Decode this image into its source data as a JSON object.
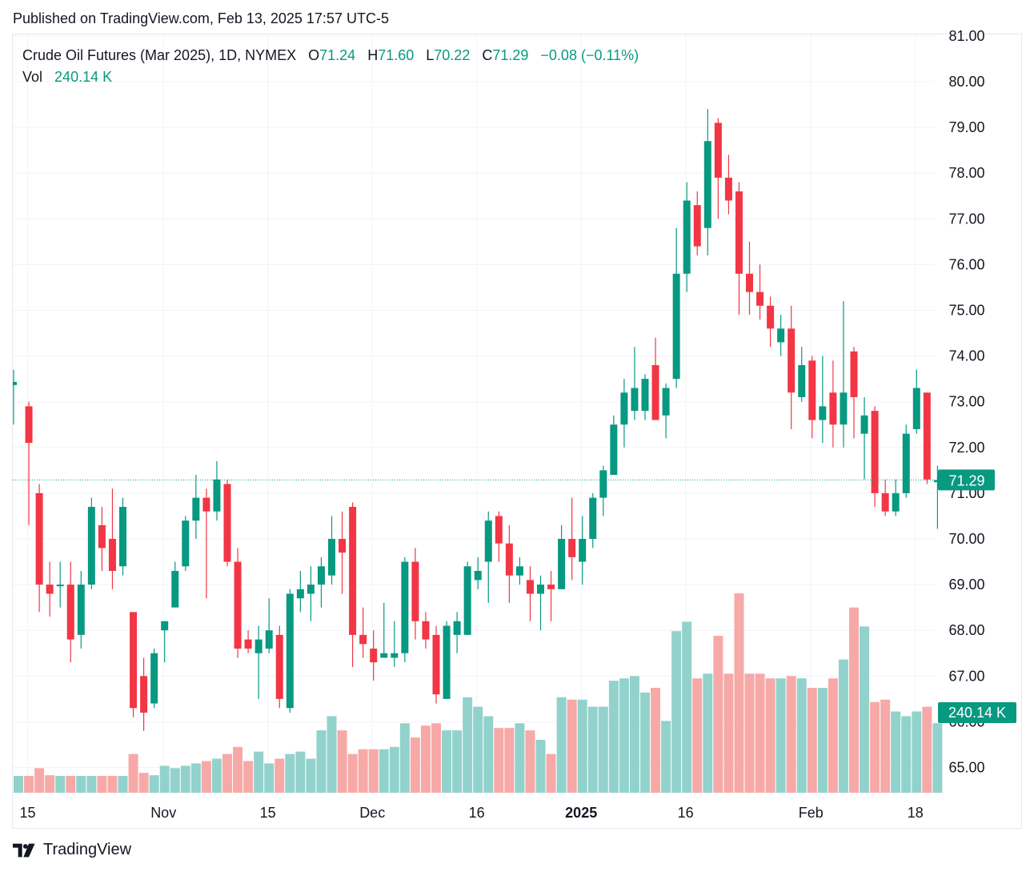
{
  "published": "Published on TradingView.com, Feb 13, 2025 17:57 UTC-5",
  "legend": {
    "symbol": "Crude Oil Futures (Mar 2025), 1D, NYMEX",
    "o_label": "O",
    "o_value": "71.24",
    "h_label": "H",
    "h_value": "71.60",
    "l_label": "L",
    "l_value": "70.22",
    "c_label": "C",
    "c_value": "71.29",
    "change": "−0.08 (−0.11%)",
    "vol_label": "Vol",
    "vol_value": "240.14 K"
  },
  "brand": "TradingView",
  "colors": {
    "up": "#089981",
    "down": "#f23645",
    "up_volume": "#92d2cc",
    "down_volume": "#f7a9a7",
    "grid": "#f0f3fa"
  },
  "chart_data": {
    "type": "candlestick",
    "title": "Crude Oil Futures (Mar 2025), 1D, NYMEX",
    "ylim": [
      64.5,
      81.0
    ],
    "y_ticks": [
      "81.00",
      "80.00",
      "79.00",
      "78.00",
      "77.00",
      "76.00",
      "75.00",
      "74.00",
      "73.00",
      "72.00",
      "71.00",
      "70.00",
      "69.00",
      "68.00",
      "67.00",
      "66.00",
      "65.00"
    ],
    "x_ticks": [
      {
        "label": "15",
        "index": 1
      },
      {
        "label": "Nov",
        "index": 14
      },
      {
        "label": "15",
        "index": 24
      },
      {
        "label": "Dec",
        "index": 34
      },
      {
        "label": "16",
        "index": 44
      },
      {
        "label": "2025",
        "index": 54,
        "bold": true
      },
      {
        "label": "16",
        "index": 64
      },
      {
        "label": "Feb",
        "index": 76
      },
      {
        "label": "18",
        "index": 86
      }
    ],
    "last_price": "71.29",
    "last_volume": "240.14 K",
    "candles": [
      {
        "o": 73.4,
        "h": 73.7,
        "l": 72.5,
        "c": 73.4,
        "v": 0.0
      },
      {
        "o": 72.9,
        "h": 73.0,
        "l": 70.3,
        "c": 72.1,
        "v": 0.1
      },
      {
        "o": 71.0,
        "h": 71.2,
        "l": 68.4,
        "c": 69.0,
        "v": 0.3
      },
      {
        "o": 69.0,
        "h": 69.5,
        "l": 68.3,
        "c": 68.8,
        "v": 0.15
      },
      {
        "o": 69.0,
        "h": 69.5,
        "l": 68.5,
        "c": 69.0,
        "v": 0.1
      },
      {
        "o": 69.0,
        "h": 69.5,
        "l": 67.3,
        "c": 67.8,
        "v": 0.1
      },
      {
        "o": 67.9,
        "h": 69.3,
        "l": 67.6,
        "c": 69.0,
        "v": 0.05
      },
      {
        "o": 69.0,
        "h": 70.9,
        "l": 68.9,
        "c": 70.7,
        "v": 0.1
      },
      {
        "o": 70.3,
        "h": 70.7,
        "l": 69.3,
        "c": 69.8,
        "v": 0.1
      },
      {
        "o": 70.0,
        "h": 71.1,
        "l": 68.9,
        "c": 69.3,
        "v": 0.05
      },
      {
        "o": 69.4,
        "h": 70.9,
        "l": 69.2,
        "c": 70.7,
        "v": 0.1
      },
      {
        "o": 68.4,
        "h": 68.4,
        "l": 66.1,
        "c": 66.3,
        "v": 0.6
      },
      {
        "o": 67.0,
        "h": 67.4,
        "l": 65.8,
        "c": 66.2,
        "v": 0.2
      },
      {
        "o": 66.4,
        "h": 67.6,
        "l": 66.3,
        "c": 67.5,
        "v": 0.15
      },
      {
        "o": 68.0,
        "h": 68.2,
        "l": 67.3,
        "c": 68.2,
        "v": 0.35
      },
      {
        "o": 68.5,
        "h": 69.5,
        "l": 68.5,
        "c": 69.3,
        "v": 0.3
      },
      {
        "o": 69.4,
        "h": 70.5,
        "l": 69.3,
        "c": 70.4,
        "v": 0.35
      },
      {
        "o": 70.4,
        "h": 71.4,
        "l": 70.0,
        "c": 70.9,
        "v": 0.4
      },
      {
        "o": 70.9,
        "h": 71.1,
        "l": 68.7,
        "c": 70.6,
        "v": 0.45
      },
      {
        "o": 70.6,
        "h": 71.7,
        "l": 70.4,
        "c": 71.3,
        "v": 0.5
      },
      {
        "o": 71.2,
        "h": 71.3,
        "l": 69.4,
        "c": 69.5,
        "v": 0.6
      },
      {
        "o": 69.5,
        "h": 69.8,
        "l": 67.4,
        "c": 67.6,
        "v": 0.75
      },
      {
        "o": 67.8,
        "h": 68.0,
        "l": 67.5,
        "c": 67.6,
        "v": 0.45
      },
      {
        "o": 67.5,
        "h": 68.1,
        "l": 66.5,
        "c": 67.8,
        "v": 0.65
      },
      {
        "o": 67.6,
        "h": 68.7,
        "l": 67.5,
        "c": 68.0,
        "v": 0.4
      },
      {
        "o": 67.9,
        "h": 68.1,
        "l": 66.3,
        "c": 66.5,
        "v": 0.5
      },
      {
        "o": 66.3,
        "h": 68.9,
        "l": 66.2,
        "c": 68.8,
        "v": 0.6
      },
      {
        "o": 68.7,
        "h": 69.3,
        "l": 68.4,
        "c": 68.9,
        "v": 0.65
      },
      {
        "o": 68.8,
        "h": 69.4,
        "l": 68.2,
        "c": 69.0,
        "v": 0.5
      },
      {
        "o": 69.0,
        "h": 69.6,
        "l": 68.5,
        "c": 69.4,
        "v": 1.1
      },
      {
        "o": 69.2,
        "h": 70.5,
        "l": 69.0,
        "c": 70.0,
        "v": 1.4
      },
      {
        "o": 70.0,
        "h": 70.6,
        "l": 68.8,
        "c": 69.7,
        "v": 1.1
      },
      {
        "o": 70.7,
        "h": 70.8,
        "l": 67.2,
        "c": 67.9,
        "v": 0.6
      },
      {
        "o": 67.9,
        "h": 68.5,
        "l": 67.4,
        "c": 67.7,
        "v": 0.7
      },
      {
        "o": 67.6,
        "h": 68.0,
        "l": 66.9,
        "c": 67.3,
        "v": 0.7
      },
      {
        "o": 67.4,
        "h": 68.6,
        "l": 67.4,
        "c": 67.5,
        "v": 0.7
      },
      {
        "o": 67.4,
        "h": 68.2,
        "l": 67.2,
        "c": 67.5,
        "v": 0.75
      },
      {
        "o": 67.5,
        "h": 69.6,
        "l": 67.3,
        "c": 69.5,
        "v": 1.25
      },
      {
        "o": 69.5,
        "h": 69.8,
        "l": 67.8,
        "c": 68.2,
        "v": 0.95
      },
      {
        "o": 68.2,
        "h": 68.4,
        "l": 67.6,
        "c": 67.8,
        "v": 1.2
      },
      {
        "o": 67.9,
        "h": 68.1,
        "l": 66.4,
        "c": 66.6,
        "v": 1.25
      },
      {
        "o": 66.5,
        "h": 68.2,
        "l": 66.6,
        "c": 68.1,
        "v": 1.1
      },
      {
        "o": 67.9,
        "h": 68.4,
        "l": 67.5,
        "c": 68.2,
        "v": 1.1
      },
      {
        "o": 67.9,
        "h": 69.5,
        "l": 67.9,
        "c": 69.4,
        "v": 1.8
      },
      {
        "o": 69.1,
        "h": 69.6,
        "l": 68.9,
        "c": 69.3,
        "v": 1.6
      },
      {
        "o": 69.5,
        "h": 70.6,
        "l": 68.6,
        "c": 70.4,
        "v": 1.4
      },
      {
        "o": 70.5,
        "h": 70.6,
        "l": 69.5,
        "c": 69.9,
        "v": 1.15
      },
      {
        "o": 69.9,
        "h": 70.3,
        "l": 68.6,
        "c": 69.2,
        "v": 1.15
      },
      {
        "o": 69.2,
        "h": 69.6,
        "l": 69.0,
        "c": 69.4,
        "v": 1.25
      },
      {
        "o": 69.1,
        "h": 69.4,
        "l": 68.2,
        "c": 68.8,
        "v": 1.1
      },
      {
        "o": 68.8,
        "h": 69.2,
        "l": 68.0,
        "c": 69.0,
        "v": 0.9
      },
      {
        "o": 69.0,
        "h": 69.3,
        "l": 68.2,
        "c": 68.9,
        "v": 0.6
      },
      {
        "o": 68.9,
        "h": 70.3,
        "l": 68.9,
        "c": 70.0,
        "v": 1.8
      },
      {
        "o": 70.0,
        "h": 70.9,
        "l": 69.1,
        "c": 69.6,
        "v": 1.75
      },
      {
        "o": 69.5,
        "h": 70.5,
        "l": 69.0,
        "c": 70.0,
        "v": 1.75
      },
      {
        "o": 70.0,
        "h": 71.0,
        "l": 69.8,
        "c": 70.9,
        "v": 1.6
      },
      {
        "o": 70.9,
        "h": 71.6,
        "l": 70.5,
        "c": 71.5,
        "v": 1.6
      },
      {
        "o": 71.4,
        "h": 72.7,
        "l": 71.5,
        "c": 72.5,
        "v": 2.15
      },
      {
        "o": 72.5,
        "h": 73.5,
        "l": 72.0,
        "c": 73.2,
        "v": 2.2
      },
      {
        "o": 72.8,
        "h": 74.2,
        "l": 72.6,
        "c": 73.3,
        "v": 2.25
      },
      {
        "o": 72.8,
        "h": 73.6,
        "l": 72.6,
        "c": 73.5,
        "v": 1.9
      },
      {
        "o": 73.8,
        "h": 74.4,
        "l": 72.6,
        "c": 72.6,
        "v": 2.0
      },
      {
        "o": 72.7,
        "h": 73.4,
        "l": 72.2,
        "c": 73.3,
        "v": 1.3
      },
      {
        "o": 73.5,
        "h": 76.8,
        "l": 73.3,
        "c": 75.8,
        "v": 3.2
      },
      {
        "o": 75.8,
        "h": 77.8,
        "l": 75.4,
        "c": 77.4,
        "v": 3.4
      },
      {
        "o": 77.3,
        "h": 77.6,
        "l": 76.2,
        "c": 76.4,
        "v": 2.2
      },
      {
        "o": 76.8,
        "h": 79.4,
        "l": 76.2,
        "c": 78.7,
        "v": 2.3
      },
      {
        "o": 79.1,
        "h": 79.2,
        "l": 77.0,
        "c": 77.9,
        "v": 3.1
      },
      {
        "o": 77.9,
        "h": 78.4,
        "l": 77.1,
        "c": 77.4,
        "v": 2.3
      },
      {
        "o": 77.6,
        "h": 77.8,
        "l": 74.9,
        "c": 75.8,
        "v": 4.0
      },
      {
        "o": 75.8,
        "h": 76.5,
        "l": 74.9,
        "c": 75.4,
        "v": 2.3
      },
      {
        "o": 75.4,
        "h": 76.0,
        "l": 74.8,
        "c": 75.1,
        "v": 2.3
      },
      {
        "o": 75.1,
        "h": 75.3,
        "l": 74.2,
        "c": 74.6,
        "v": 2.2
      },
      {
        "o": 74.3,
        "h": 74.9,
        "l": 74.0,
        "c": 74.6,
        "v": 2.2
      },
      {
        "o": 74.6,
        "h": 75.1,
        "l": 72.4,
        "c": 73.2,
        "v": 2.25
      },
      {
        "o": 73.1,
        "h": 74.2,
        "l": 73.0,
        "c": 73.8,
        "v": 2.2
      },
      {
        "o": 73.9,
        "h": 74.0,
        "l": 72.2,
        "c": 72.6,
        "v": 2.0
      },
      {
        "o": 72.6,
        "h": 74.0,
        "l": 72.1,
        "c": 72.9,
        "v": 2.0
      },
      {
        "o": 73.2,
        "h": 73.9,
        "l": 72.0,
        "c": 72.5,
        "v": 2.2
      },
      {
        "o": 72.5,
        "h": 75.2,
        "l": 72.0,
        "c": 73.2,
        "v": 2.6
      },
      {
        "o": 74.1,
        "h": 74.2,
        "l": 72.2,
        "c": 73.1,
        "v": 3.7
      },
      {
        "o": 72.3,
        "h": 73.1,
        "l": 71.3,
        "c": 72.7,
        "v": 3.3
      },
      {
        "o": 72.8,
        "h": 72.9,
        "l": 70.7,
        "c": 71.0,
        "v": 1.7
      },
      {
        "o": 71.0,
        "h": 71.3,
        "l": 70.5,
        "c": 70.6,
        "v": 1.75
      },
      {
        "o": 70.6,
        "h": 71.3,
        "l": 70.5,
        "c": 71.0,
        "v": 1.5
      },
      {
        "o": 71.0,
        "h": 72.5,
        "l": 70.9,
        "c": 72.3,
        "v": 1.4
      },
      {
        "o": 72.4,
        "h": 73.7,
        "l": 72.3,
        "c": 73.3,
        "v": 1.5
      },
      {
        "o": 73.2,
        "h": 73.2,
        "l": 71.2,
        "c": 71.3,
        "v": 1.6
      },
      {
        "o": 71.24,
        "h": 71.6,
        "l": 70.22,
        "c": 71.29,
        "v": 1.25
      }
    ]
  }
}
